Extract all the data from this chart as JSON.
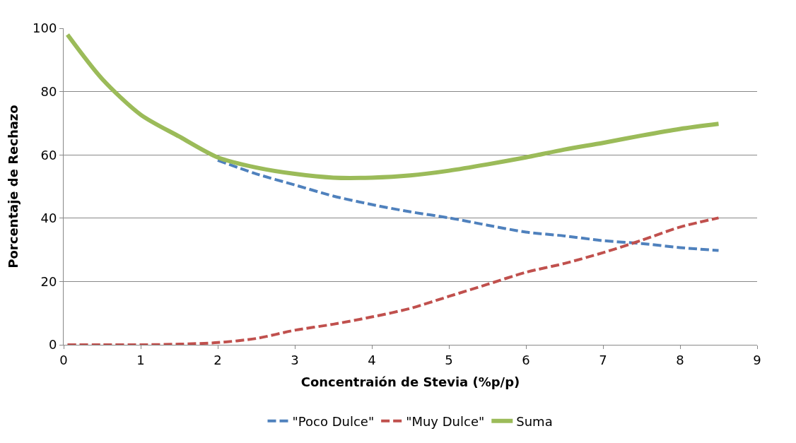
{
  "chart_data": {
    "type": "line",
    "xlabel": "Concentraión de Stevia (%p/p)",
    "ylabel": "Porcentaje de Rechazo",
    "x": [
      0.05,
      0.5,
      1,
      1.5,
      2,
      2.5,
      3,
      3.5,
      4,
      4.5,
      5,
      5.5,
      6,
      6.5,
      7,
      7.5,
      8,
      8.5
    ],
    "series": [
      {
        "name": "\"Poco Dulce\"",
        "color": "#4f81bd",
        "line_style": "dashed",
        "values": [
          null,
          null,
          null,
          null,
          58.3,
          54,
          50.5,
          47,
          44.3,
          42,
          40.1,
          37.8,
          35.6,
          34.4,
          32.9,
          32,
          30.7,
          29.8
        ]
      },
      {
        "name": "\"Muy Dulce\"",
        "color": "#c0504d",
        "line_style": "dashed",
        "values": [
          0,
          0,
          0,
          0.2,
          0.7,
          2,
          4.6,
          6.5,
          8.8,
          11.5,
          15.3,
          19.1,
          22.9,
          25.7,
          29.1,
          33,
          37.2,
          40.1
        ]
      },
      {
        "name": "Suma",
        "color": "#9bbb59",
        "line_style": "solid",
        "values": [
          98,
          84,
          72.7,
          65.8,
          59.2,
          56,
          54,
          52.8,
          52.8,
          53.5,
          55,
          57,
          59.2,
          61.7,
          63.8,
          66.1,
          68.2,
          69.8
        ]
      }
    ],
    "xlim": [
      0,
      9
    ],
    "xticks": [
      0,
      1,
      2,
      3,
      4,
      5,
      6,
      7,
      8,
      9
    ],
    "ylim": [
      0,
      100
    ],
    "yticks": [
      0,
      20,
      40,
      60,
      80,
      100
    ],
    "grid": "y",
    "legend": "bottom",
    "marker": "none"
  }
}
